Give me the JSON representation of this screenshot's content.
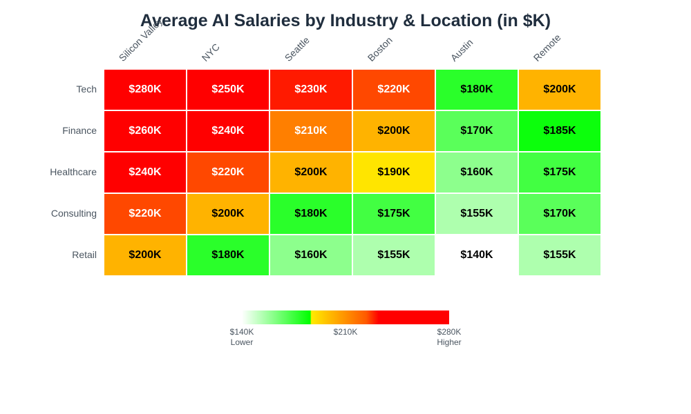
{
  "chart_data": {
    "type": "heatmap",
    "title": "Average AI Salaries by Industry & Location (in $K)",
    "columns": [
      "Silicon Valley",
      "NYC",
      "Seattle",
      "Boston",
      "Austin",
      "Remote"
    ],
    "rows": [
      "Tech",
      "Finance",
      "Healthcare",
      "Consulting",
      "Retail"
    ],
    "values": [
      [
        280,
        250,
        230,
        220,
        180,
        200
      ],
      [
        260,
        240,
        210,
        200,
        170,
        185
      ],
      [
        240,
        220,
        200,
        190,
        160,
        175
      ],
      [
        220,
        200,
        180,
        175,
        155,
        170
      ],
      [
        200,
        180,
        160,
        155,
        140,
        155
      ]
    ],
    "cell_labels": [
      [
        "$280K",
        "$250K",
        "$230K",
        "$220K",
        "$180K",
        "$200K"
      ],
      [
        "$260K",
        "$240K",
        "$210K",
        "$200K",
        "$170K",
        "$185K"
      ],
      [
        "$240K",
        "$220K",
        "$200K",
        "$190K",
        "$160K",
        "$175K"
      ],
      [
        "$220K",
        "$200K",
        "$180K",
        "$175K",
        "$155K",
        "$170K"
      ],
      [
        "$200K",
        "$180K",
        "$160K",
        "$155K",
        "$140K",
        "$155K"
      ]
    ],
    "cell_colors": [
      [
        "#ff0000",
        "#ff0000",
        "#ff1a00",
        "#ff4800",
        "#2aff2a",
        "#ffb300"
      ],
      [
        "#ff0000",
        "#ff0000",
        "#ff7f00",
        "#ffb300",
        "#5aff5a",
        "#0cff0c"
      ],
      [
        "#ff0000",
        "#ff4800",
        "#ffb300",
        "#ffe500",
        "#8dff8d",
        "#42ff42"
      ],
      [
        "#ff4800",
        "#ffb300",
        "#2aff2a",
        "#42ff42",
        "#aeffae",
        "#5aff5a"
      ],
      [
        "#ffb300",
        "#2aff2a",
        "#8dff8d",
        "#aeffae",
        "#ffffff",
        "#aeffae"
      ]
    ],
    "cell_text_colors": [
      [
        "#ffffff",
        "#ffffff",
        "#ffffff",
        "#ffffff",
        "#000000",
        "#000000"
      ],
      [
        "#ffffff",
        "#ffffff",
        "#ffffff",
        "#000000",
        "#000000",
        "#000000"
      ],
      [
        "#ffffff",
        "#ffffff",
        "#000000",
        "#000000",
        "#000000",
        "#000000"
      ],
      [
        "#ffffff",
        "#000000",
        "#000000",
        "#000000",
        "#000000",
        "#000000"
      ],
      [
        "#000000",
        "#000000",
        "#000000",
        "#000000",
        "#000000",
        "#000000"
      ]
    ],
    "colorscale": {
      "min": 140,
      "max": 280,
      "colors": [
        "#ffffff",
        "#00ff00",
        "#ffeb00",
        "#ff5a00",
        "#ff0000",
        "#ff0000"
      ],
      "ticks": [
        {
          "value": 140,
          "label": "$140K",
          "sub": "Lower"
        },
        {
          "value": 210,
          "label": "$210K",
          "sub": ""
        },
        {
          "value": 280,
          "label": "$280K",
          "sub": "Higher"
        }
      ]
    },
    "legend_placement": "bottom-center"
  }
}
